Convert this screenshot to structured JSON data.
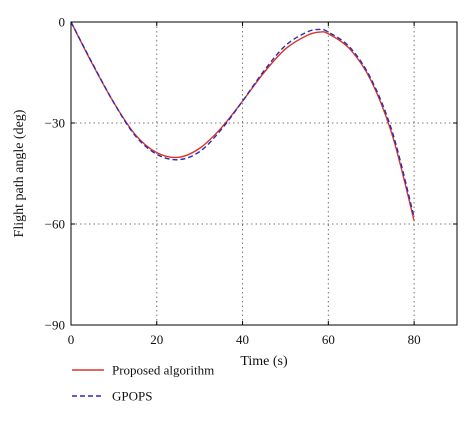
{
  "chart_data": {
    "type": "line",
    "title": "",
    "xlabel": "Time (s)",
    "ylabel": "Flight path angle (deg)",
    "xlim": [
      0,
      90
    ],
    "ylim": [
      -90,
      0
    ],
    "xticks": [
      0,
      20,
      40,
      60,
      80
    ],
    "yticks": [
      0,
      -30,
      -60,
      -90
    ],
    "xtick_labels": [
      "0",
      "20",
      "40",
      "60",
      "80"
    ],
    "ytick_labels": [
      "0",
      "−30",
      "−60",
      "−90"
    ],
    "grid": true,
    "legend_position": "bottom",
    "series": [
      {
        "name": "Proposed algorithm",
        "color": "#d9342b",
        "style": "solid",
        "x": [
          0,
          5,
          10,
          15,
          20,
          25,
          30,
          35,
          40,
          45,
          50,
          55,
          58,
          60,
          65,
          70,
          75,
          80
        ],
        "y": [
          0,
          -12.5,
          -24,
          -33.5,
          -38.8,
          -40.2,
          -37.5,
          -31.5,
          -23.5,
          -15,
          -8,
          -4,
          -3,
          -3.5,
          -8,
          -17.5,
          -34,
          -59
        ]
      },
      {
        "name": "GPOPS",
        "color": "#2b2bb8",
        "style": "dashed",
        "x": [
          0,
          5,
          10,
          15,
          20,
          25,
          30,
          35,
          40,
          45,
          50,
          55,
          58,
          60,
          65,
          70,
          75,
          80
        ],
        "y": [
          0,
          -12.3,
          -24,
          -33.8,
          -39.3,
          -40.9,
          -38.5,
          -32,
          -23.5,
          -14.5,
          -7,
          -3,
          -2.2,
          -3,
          -7.5,
          -17,
          -33,
          -58
        ]
      }
    ]
  }
}
